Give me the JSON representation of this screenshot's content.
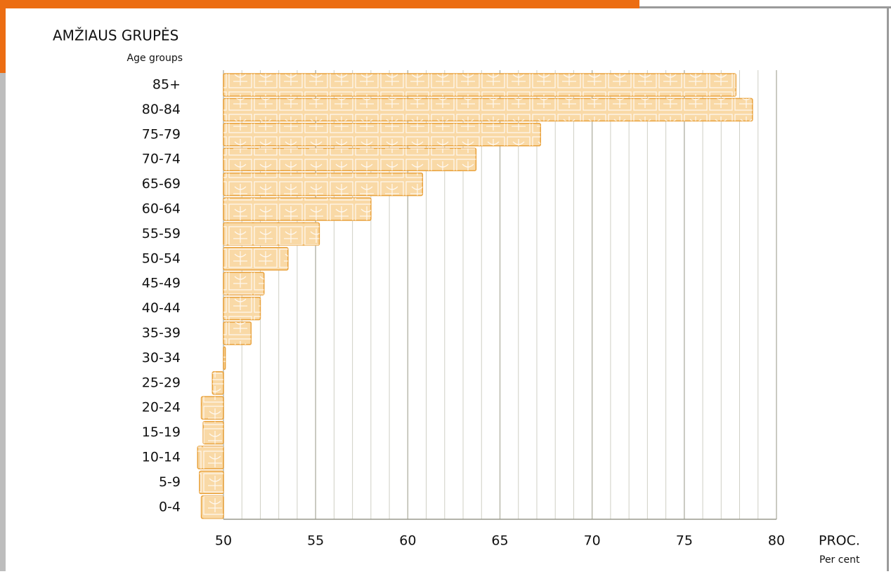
{
  "chart_data": {
    "type": "bar",
    "orientation": "horizontal",
    "y_title": "AMŽIAUS GRUPĖS",
    "y_subtitle": "Age groups",
    "x_title": "PROC.",
    "x_subtitle": "Per cent",
    "categories": [
      "85+",
      "80-84",
      "75-79",
      "70-74",
      "65-69",
      "60-64",
      "55-59",
      "50-54",
      "45-49",
      "40-44",
      "35-39",
      "30-34",
      "25-29",
      "20-24",
      "15-19",
      "10-14",
      "5-9",
      "0-4"
    ],
    "values": [
      77.8,
      78.7,
      67.2,
      63.7,
      60.8,
      58.0,
      55.2,
      53.5,
      52.2,
      52.0,
      51.5,
      50.1,
      49.4,
      48.8,
      48.9,
      48.6,
      48.7,
      48.8
    ],
    "base": 50,
    "color": "#f9d9a6",
    "edge_color": "#e9a13a",
    "xlim": [
      50,
      80
    ],
    "xticks": [
      50,
      55,
      60,
      65,
      70,
      75,
      80
    ],
    "xminorticks": [
      51,
      52,
      53,
      54,
      56,
      57,
      58,
      59,
      61,
      62,
      63,
      64,
      66,
      67,
      68,
      69,
      71,
      72,
      73,
      74,
      76,
      77,
      78,
      79
    ],
    "grid": true
  }
}
